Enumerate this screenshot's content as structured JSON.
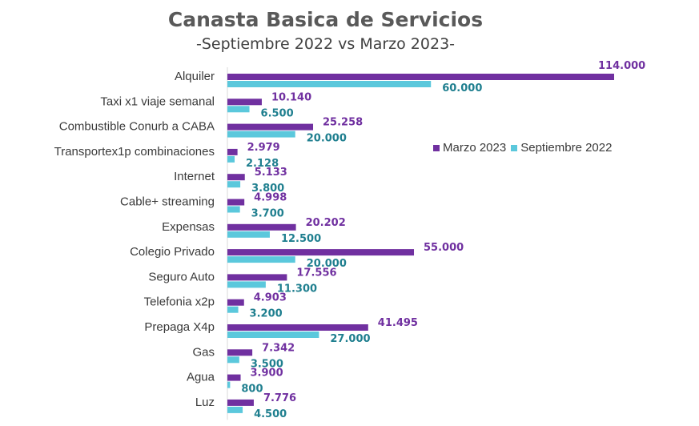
{
  "chart_data": {
    "type": "bar",
    "orientation": "horizontal",
    "title": "Canasta Basica de Servicios",
    "subtitle": "-Septiembre 2022 vs Marzo 2023-",
    "categories": [
      "Alquiler",
      "Taxi x1 viaje semanal",
      "Combustible Conurb a CABA",
      "Transportex1p combinaciones",
      "Internet",
      "Cable+ streaming",
      "Expensas",
      "Colegio Privado",
      "Seguro Auto",
      "Telefonia x2p",
      "Prepaga X4p",
      "Gas",
      "Agua",
      "Luz"
    ],
    "series": [
      {
        "name": "Marzo 2023",
        "color": "#7030a0",
        "values": [
          114000,
          10140,
          25258,
          2979,
          5133,
          4998,
          20202,
          55000,
          17556,
          4903,
          41495,
          7342,
          3900,
          7776
        ],
        "labels": [
          "114.000",
          "10.140",
          "25.258",
          "2.979",
          "5.133",
          "4.998",
          "20.202",
          "55.000",
          "17.556",
          "4.903",
          "41.495",
          "7.342",
          "3.900",
          "7.776"
        ]
      },
      {
        "name": "Septiembre 2022",
        "color": "#5bc8dc",
        "values": [
          60000,
          6500,
          20000,
          2128,
          3800,
          3700,
          12500,
          20000,
          11300,
          3200,
          27000,
          3500,
          800,
          4500
        ],
        "labels": [
          "60.000",
          "6.500",
          "20.000",
          "2.128",
          "3.800",
          "3.700",
          "12.500",
          "20.000",
          "11.300",
          "3.200",
          "27.000",
          "3.500",
          "800",
          "4.500"
        ]
      }
    ],
    "xlim": [
      0,
      114000
    ],
    "legend": "right",
    "grid": false,
    "label_colors": {
      "Marzo 2023": "#7030a0",
      "Septiembre 2022": "#1f7f8f"
    }
  }
}
